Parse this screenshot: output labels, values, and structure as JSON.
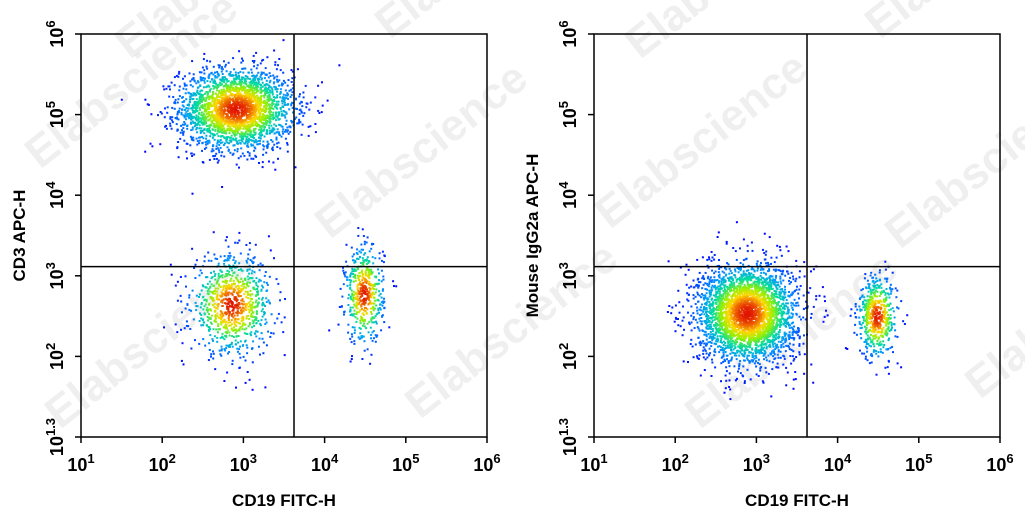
{
  "watermark": "Elabscience",
  "chart_data": [
    {
      "type": "scatter",
      "xlabel": "CD19 FITC-H",
      "ylabel": "CD3 APC-H",
      "xscale": "log",
      "yscale": "log",
      "xlim": [
        10,
        1000000
      ],
      "ylim": [
        10,
        1000000
      ],
      "x_ticks": [
        {
          "base": "10",
          "exp": "1"
        },
        {
          "base": "10",
          "exp": "2"
        },
        {
          "base": "10",
          "exp": "3"
        },
        {
          "base": "10",
          "exp": "4"
        },
        {
          "base": "10",
          "exp": "5"
        },
        {
          "base": "10",
          "exp": "6"
        }
      ],
      "y_ticks": [
        {
          "base": "10",
          "exp": "1.3"
        },
        {
          "base": "10",
          "exp": "2"
        },
        {
          "base": "10",
          "exp": "3"
        },
        {
          "base": "10",
          "exp": "4"
        },
        {
          "base": "10",
          "exp": "5"
        },
        {
          "base": "10",
          "exp": "6"
        }
      ],
      "quadrant_gate": {
        "x": 4200,
        "y": 1300
      },
      "populations": [
        {
          "center": [
            800,
            120000
          ],
          "spread_decades": [
            0.35,
            0.25
          ],
          "events": 2600
        },
        {
          "center": [
            700,
            450
          ],
          "spread_decades": [
            0.25,
            0.3
          ],
          "events": 900
        },
        {
          "center": [
            30000,
            600
          ],
          "spread_decades": [
            0.12,
            0.3
          ],
          "events": 500
        }
      ]
    },
    {
      "type": "scatter",
      "xlabel": "CD19 FITC-H",
      "ylabel": "Mouse IgG2a APC-H",
      "xscale": "log",
      "yscale": "log",
      "xlim": [
        10,
        1000000
      ],
      "ylim": [
        10,
        1000000
      ],
      "x_ticks": [
        {
          "base": "10",
          "exp": "1"
        },
        {
          "base": "10",
          "exp": "2"
        },
        {
          "base": "10",
          "exp": "3"
        },
        {
          "base": "10",
          "exp": "4"
        },
        {
          "base": "10",
          "exp": "5"
        },
        {
          "base": "10",
          "exp": "6"
        }
      ],
      "y_ticks": [
        {
          "base": "10",
          "exp": "1.3"
        },
        {
          "base": "10",
          "exp": "2"
        },
        {
          "base": "10",
          "exp": "3"
        },
        {
          "base": "10",
          "exp": "4"
        },
        {
          "base": "10",
          "exp": "5"
        },
        {
          "base": "10",
          "exp": "6"
        }
      ],
      "quadrant_gate": {
        "x": 4200,
        "y": 1300
      },
      "populations": [
        {
          "center": [
            750,
            350
          ],
          "spread_decades": [
            0.3,
            0.3
          ],
          "events": 3200
        },
        {
          "center": [
            30000,
            320
          ],
          "spread_decades": [
            0.12,
            0.25
          ],
          "events": 550
        }
      ]
    }
  ]
}
